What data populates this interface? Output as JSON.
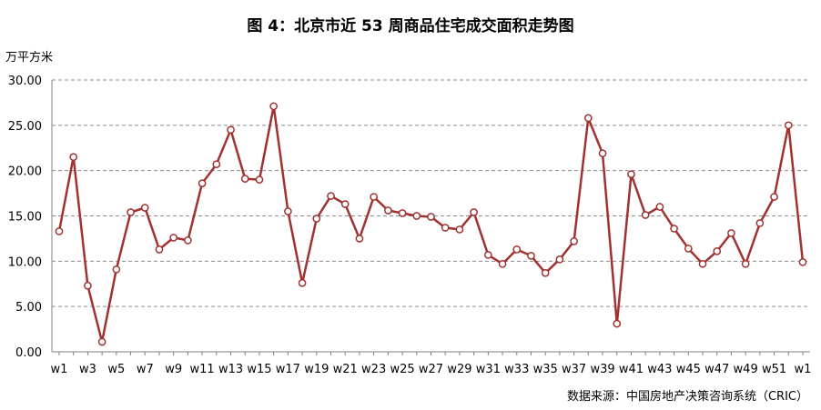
{
  "title": "图 4：北京市近 53 周商品住宅成交面积走势图",
  "source": "数据来源：中国房地产决策咨询系统（CRIC）",
  "chart_data": {
    "type": "line",
    "title": "图 4：北京市近 53 周商品住宅成交面积走势图",
    "xlabel": "",
    "ylabel": "万平方米",
    "ylim": [
      0,
      30
    ],
    "yticks": [
      "0.00",
      "5.00",
      "10.00",
      "15.00",
      "20.00",
      "25.00",
      "30.00"
    ],
    "grid": true,
    "categories": [
      "w1",
      "w2",
      "w3",
      "w4",
      "w5",
      "w6",
      "w7",
      "w8",
      "w9",
      "w10",
      "w11",
      "w12",
      "w13",
      "w14",
      "w15",
      "w16",
      "w17",
      "w18",
      "w19",
      "w20",
      "w21",
      "w22",
      "w23",
      "w24",
      "w25",
      "w26",
      "w27",
      "w28",
      "w29",
      "w30",
      "w31",
      "w32",
      "w33",
      "w34",
      "w35",
      "w36",
      "w37",
      "w38",
      "w39",
      "w40",
      "w41",
      "w42",
      "w43",
      "w44",
      "w45",
      "w46",
      "w47",
      "w48",
      "w49",
      "w50",
      "w51",
      "w52",
      "w1"
    ],
    "xtick_labels": [
      "w1",
      "",
      "w3",
      "",
      "w5",
      "",
      "w7",
      "",
      "w9",
      "",
      "w11",
      "",
      "w13",
      "",
      "w15",
      "",
      "w17",
      "",
      "w19",
      "",
      "w21",
      "",
      "w23",
      "",
      "w25",
      "",
      "w27",
      "",
      "w29",
      "",
      "w31",
      "",
      "w33",
      "",
      "w35",
      "",
      "w37",
      "",
      "w39",
      "",
      "w41",
      "",
      "w43",
      "",
      "w45",
      "",
      "w47",
      "",
      "w49",
      "",
      "w51",
      "",
      "w1"
    ],
    "series": [
      {
        "values": [
          13.3,
          21.5,
          7.3,
          1.1,
          9.1,
          15.4,
          15.9,
          11.3,
          12.6,
          12.3,
          18.6,
          20.7,
          24.5,
          19.1,
          19.0,
          27.1,
          15.5,
          7.6,
          14.7,
          17.2,
          16.3,
          12.5,
          17.1,
          15.6,
          15.3,
          15.0,
          14.9,
          13.7,
          13.5,
          15.4,
          10.7,
          9.7,
          11.3,
          10.6,
          8.7,
          10.2,
          12.2,
          25.8,
          21.9,
          3.1,
          19.6,
          15.1,
          16.0,
          13.6,
          11.4,
          9.7,
          11.1,
          13.1,
          9.7,
          14.2,
          17.1,
          25.0,
          9.9
        ],
        "color": "#a03232"
      }
    ]
  }
}
